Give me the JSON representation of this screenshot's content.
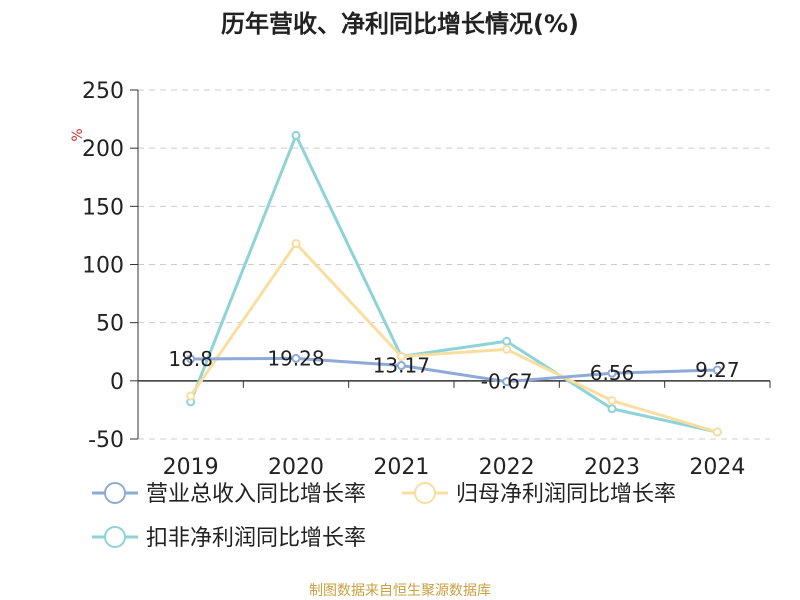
{
  "chart_data": {
    "type": "line",
    "title": "历年营收、净利同比增长情况(%)",
    "ylabel": "%",
    "categories": [
      "2019",
      "2020",
      "2021",
      "2022",
      "2023",
      "2024"
    ],
    "ylim": [
      -50,
      250
    ],
    "yticks": [
      250,
      200,
      150,
      100,
      50,
      0,
      -50
    ],
    "grid": true,
    "legend_position": "bottom-left",
    "series": [
      {
        "name": "营业总收入同比增长率",
        "color": "#8eaad6",
        "values": [
          18.8,
          19.28,
          13.17,
          -0.67,
          6.56,
          9.27
        ],
        "labels": [
          "18.8",
          "19.28",
          "13.17",
          "-0.67",
          "6.56",
          "9.27"
        ]
      },
      {
        "name": "归母净利润同比增长率",
        "color": "#f9dea0",
        "values": [
          -13,
          118,
          21,
          27,
          -17,
          -44
        ]
      },
      {
        "name": "扣非净利润同比增长率",
        "color": "#8dd3d7",
        "values": [
          -18,
          211,
          21,
          34,
          -24,
          -44
        ]
      }
    ]
  },
  "source": "制图数据来自恒生聚源数据库"
}
